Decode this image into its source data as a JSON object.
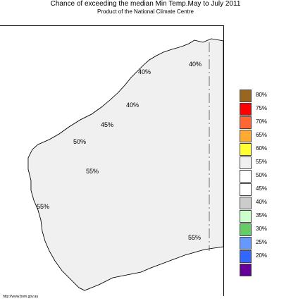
{
  "title": "Chance of exceeding the median Min Temp.May to July 2011",
  "subtitle": "Product of the National Climate Centre",
  "footer_url": "http://www.bom.gov.au",
  "map_labels": [
    {
      "name": "label-40-north",
      "text": "40%"
    },
    {
      "name": "label-40-northeast",
      "text": "40%"
    },
    {
      "name": "label-40-central",
      "text": "40%"
    },
    {
      "name": "label-45",
      "text": "45%"
    },
    {
      "name": "label-50",
      "text": "50%"
    },
    {
      "name": "label-55-central",
      "text": "55%"
    },
    {
      "name": "label-55-west",
      "text": "55%"
    },
    {
      "name": "label-55-south",
      "text": "55%"
    }
  ],
  "legend": [
    {
      "label": "80%",
      "color": "#996622"
    },
    {
      "label": "75%",
      "color": "#ff0000"
    },
    {
      "label": "70%",
      "color": "#ff6633"
    },
    {
      "label": "65%",
      "color": "#ffaa33"
    },
    {
      "label": "60%",
      "color": "#ffff33"
    },
    {
      "label": "55%",
      "color": "#f0f0f0"
    },
    {
      "label": "50%",
      "color": "#ffffff"
    },
    {
      "label": "45%",
      "color": "#ffffff"
    },
    {
      "label": "40%",
      "color": "#cccccc"
    },
    {
      "label": "35%",
      "color": "#ccffcc"
    },
    {
      "label": "30%",
      "color": "#66cc66"
    },
    {
      "label": "25%",
      "color": "#6699ff"
    },
    {
      "label": "20%",
      "color": "#3366ff"
    },
    {
      "label": "",
      "color": "#660099"
    }
  ]
}
